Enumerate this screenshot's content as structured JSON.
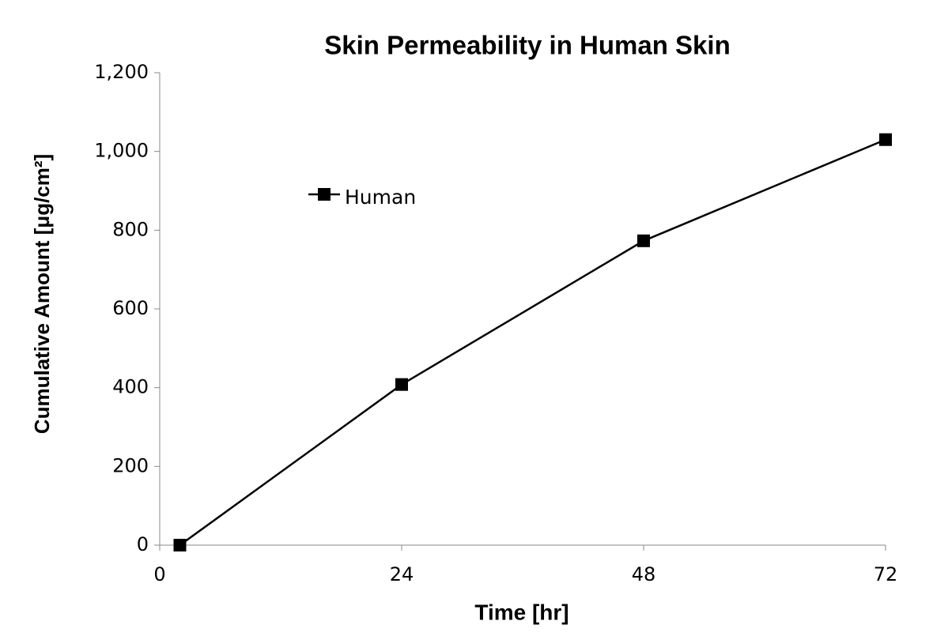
{
  "chart_data": {
    "type": "line",
    "title": "Skin Permeability in Human Skin",
    "x_label": "Time [hr]",
    "y_label": "Cumulative Amount [μg/cm²]",
    "x": [
      2,
      24,
      48,
      72
    ],
    "series": [
      {
        "name": "Human",
        "color": "#000000",
        "values": [
          0,
          408,
          773,
          1030
        ]
      }
    ],
    "xlim": [
      0,
      72
    ],
    "xticks": [
      0,
      24,
      48,
      72
    ],
    "ylim": [
      0,
      1200
    ],
    "yticks": [
      0,
      200,
      400,
      600,
      800,
      {
        "value": 1000,
        "label": "1,000"
      },
      {
        "value": 1200,
        "label": "1,200"
      }
    ],
    "grid": false
  }
}
